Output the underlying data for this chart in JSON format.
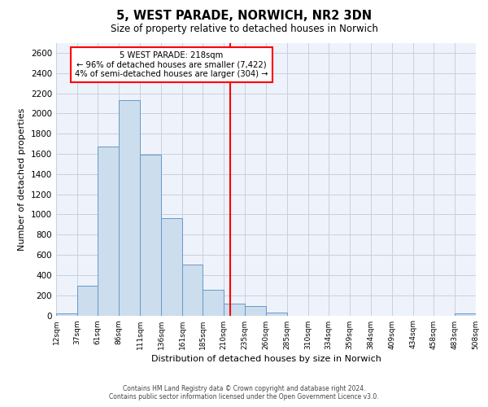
{
  "title": "5, WEST PARADE, NORWICH, NR2 3DN",
  "subtitle": "Size of property relative to detached houses in Norwich",
  "xlabel": "Distribution of detached houses by size in Norwich",
  "ylabel": "Number of detached properties",
  "bar_color": "#ccdded",
  "bar_edge_color": "#6699cc",
  "background_color": "#eef2fa",
  "grid_color": "#c8cfe0",
  "vline_x": 218,
  "vline_color": "red",
  "annotation_title": "5 WEST PARADE: 218sqm",
  "annotation_line1": "← 96% of detached houses are smaller (7,422)",
  "annotation_line2": "4% of semi-detached houses are larger (304) →",
  "bin_edges": [
    12,
    37,
    61,
    86,
    111,
    136,
    161,
    185,
    210,
    235,
    260,
    285,
    310,
    334,
    359,
    384,
    409,
    434,
    458,
    483,
    508
  ],
  "bin_heights": [
    20,
    295,
    1670,
    2130,
    1595,
    960,
    505,
    255,
    120,
    95,
    30,
    0,
    0,
    0,
    0,
    0,
    0,
    0,
    0,
    20
  ],
  "tick_labels": [
    "12sqm",
    "37sqm",
    "61sqm",
    "86sqm",
    "111sqm",
    "136sqm",
    "161sqm",
    "185sqm",
    "210sqm",
    "235sqm",
    "260sqm",
    "285sqm",
    "310sqm",
    "334sqm",
    "359sqm",
    "384sqm",
    "409sqm",
    "434sqm",
    "458sqm",
    "483sqm",
    "508sqm"
  ],
  "ylim": [
    0,
    2700
  ],
  "yticks": [
    0,
    200,
    400,
    600,
    800,
    1000,
    1200,
    1400,
    1600,
    1800,
    2000,
    2200,
    2400,
    2600
  ],
  "footer_line1": "Contains HM Land Registry data © Crown copyright and database right 2024.",
  "footer_line2": "Contains public sector information licensed under the Open Government Licence v3.0."
}
